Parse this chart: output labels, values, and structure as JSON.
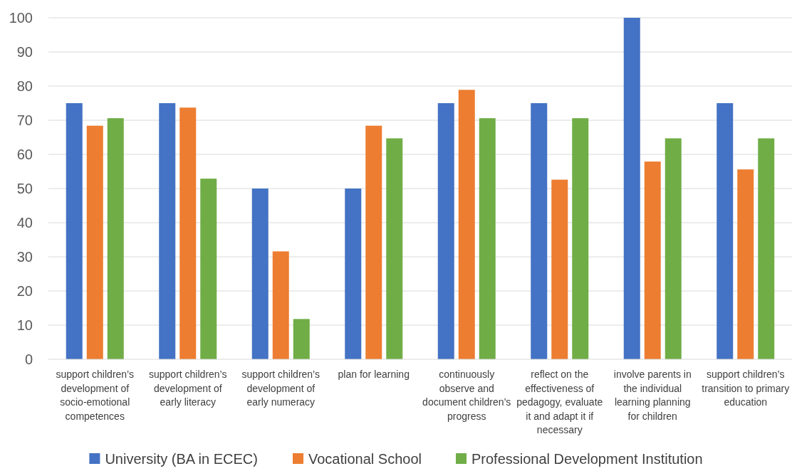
{
  "chart_data": {
    "type": "bar",
    "categories": [
      "support children’s development of socio-emotional competences",
      "support children’s development of early literacy",
      "support children’s development of early numeracy",
      "plan for learning",
      "continuously observe and document children’s progress",
      "reflect on the effectiveness of pedagogy, evaluate it and adapt it if necessary",
      "involve parents in the individual learning planning for children",
      "support children’s transition to primary education"
    ],
    "series": [
      {
        "name": "University (BA in ECEC)",
        "color": "#4472c4",
        "values": [
          75,
          75,
          50,
          50,
          75,
          75,
          100,
          75
        ]
      },
      {
        "name": "Vocational School",
        "color": "#ed7d31",
        "values": [
          68.4,
          73.7,
          31.6,
          68.4,
          78.9,
          52.6,
          57.9,
          55.6
        ]
      },
      {
        "name": "Professional Development Institution",
        "color": "#70ad47",
        "values": [
          70.6,
          52.9,
          11.8,
          64.7,
          70.6,
          70.6,
          64.7,
          64.7
        ]
      }
    ],
    "ylim": [
      0,
      100
    ],
    "yticks": [
      0,
      10,
      20,
      30,
      40,
      50,
      60,
      70,
      80,
      90,
      100
    ],
    "grid": "y",
    "legend": "bottom"
  }
}
